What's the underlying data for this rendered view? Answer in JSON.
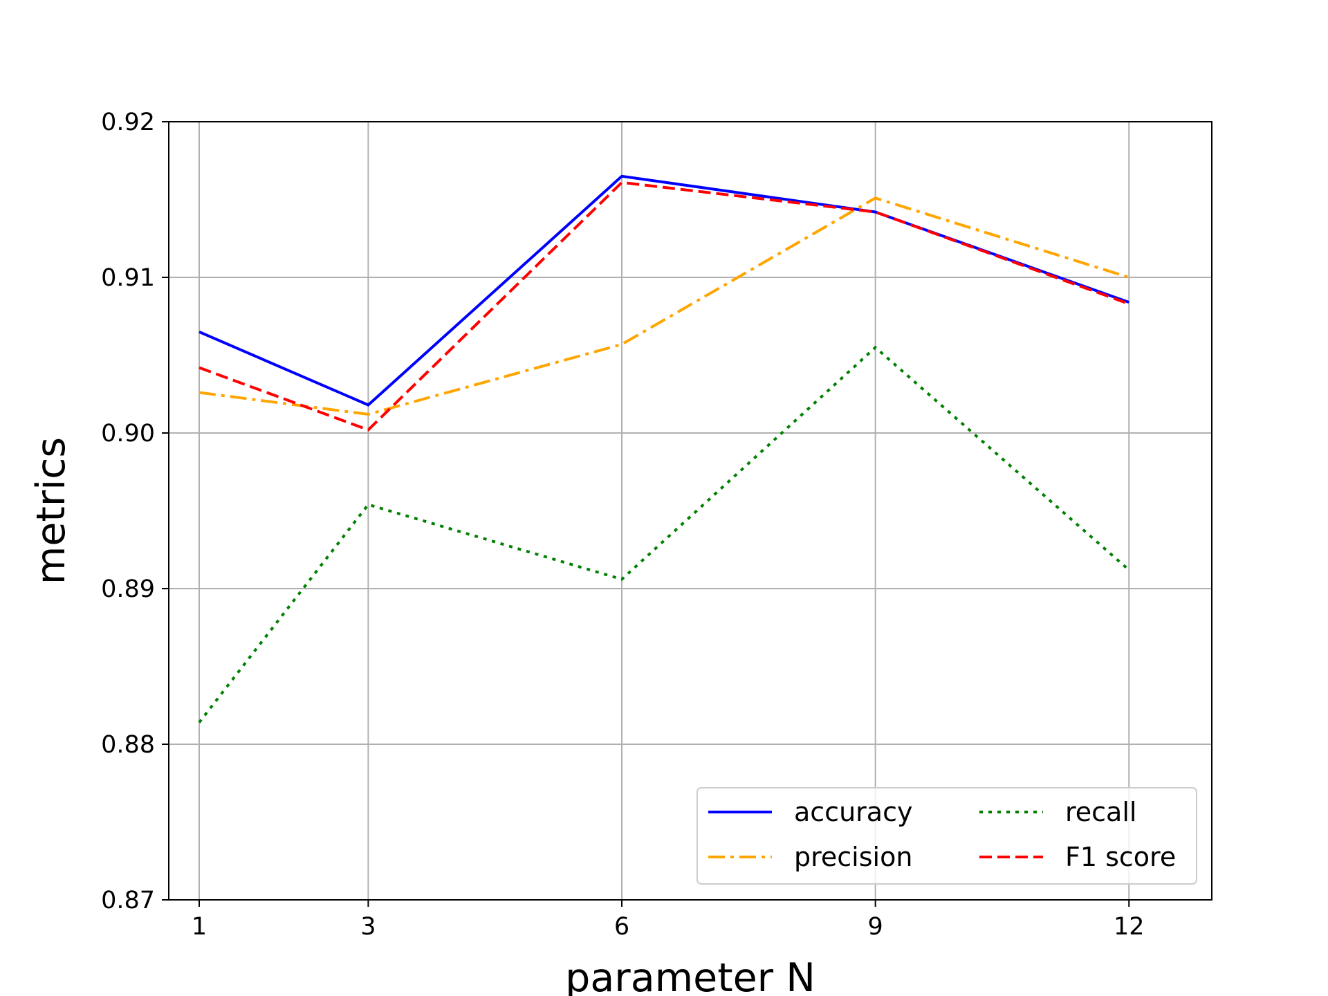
{
  "chart_data": {
    "type": "line",
    "title": "",
    "xlabel": "parameter N",
    "ylabel": "metrics",
    "x": [
      1,
      3,
      6,
      9,
      12
    ],
    "x_tick_labels": [
      "1",
      "3",
      "6",
      "9",
      "12"
    ],
    "ylim": [
      0.87,
      0.92
    ],
    "y_ticks": [
      0.87,
      0.88,
      0.89,
      0.9,
      0.91,
      0.92
    ],
    "y_tick_labels": [
      "0.87",
      "0.88",
      "0.89",
      "0.90",
      "0.91",
      "0.92"
    ],
    "grid": true,
    "legend": {
      "placement": "lower-right",
      "columns": 2
    },
    "series": [
      {
        "name": "accuracy",
        "color": "#0000ff",
        "dash": "solid",
        "values": [
          0.9065,
          0.9018,
          0.9165,
          0.9142,
          0.9084
        ]
      },
      {
        "name": "precision",
        "color": "#ffa500",
        "dash": "dashdot",
        "values": [
          0.9026,
          0.9012,
          0.9057,
          0.9151,
          0.91
        ]
      },
      {
        "name": "recall",
        "color": "#008000",
        "dash": "dotted",
        "values": [
          0.8814,
          0.8954,
          0.8906,
          0.9055,
          0.8912
        ]
      },
      {
        "name": "F1 score",
        "color": "#ff0000",
        "dash": "dashed",
        "values": [
          0.9042,
          0.9002,
          0.9161,
          0.9142,
          0.9083
        ]
      }
    ]
  }
}
